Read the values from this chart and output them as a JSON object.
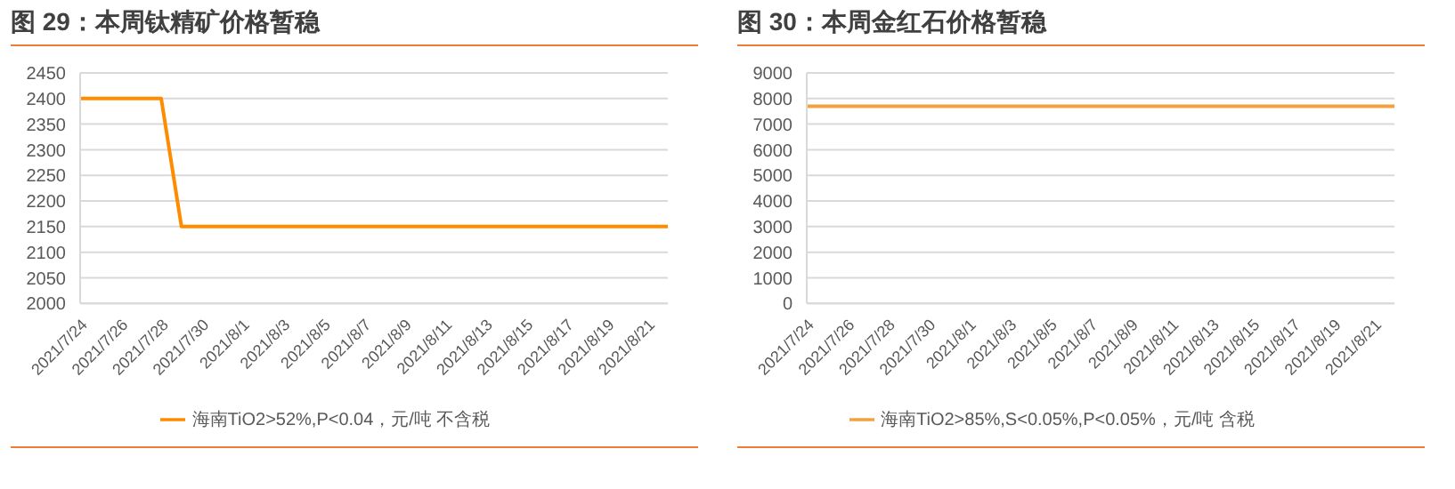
{
  "chart_data": [
    {
      "type": "line",
      "title": "图 29：本周钛精矿价格暂稳",
      "categories": [
        "2021/7/24",
        null,
        "2021/7/26",
        null,
        "2021/7/28",
        null,
        "2021/7/30",
        null,
        "2021/8/1",
        null,
        "2021/8/3",
        null,
        "2021/8/5",
        null,
        "2021/8/7",
        null,
        "2021/8/9",
        null,
        "2021/8/11",
        null,
        "2021/8/13",
        null,
        "2021/8/15",
        null,
        "2021/8/17",
        null,
        "2021/8/19",
        null,
        "2021/8/21",
        null
      ],
      "series": [
        {
          "name": "海南TiO2>52%,P<0.04，元/吨 不含税",
          "color": "#ff8c00",
          "values": [
            2400,
            2400,
            2400,
            2400,
            2400,
            2150,
            2150,
            2150,
            2150,
            2150,
            2150,
            2150,
            2150,
            2150,
            2150,
            2150,
            2150,
            2150,
            2150,
            2150,
            2150,
            2150,
            2150,
            2150,
            2150,
            2150,
            2150,
            2150,
            2150,
            2150
          ]
        }
      ],
      "ylim": [
        2000,
        2450
      ],
      "yticks": [
        2000,
        2050,
        2100,
        2150,
        2200,
        2250,
        2300,
        2350,
        2400,
        2450
      ],
      "grid": "y",
      "legend": "bottom",
      "marker": "none"
    },
    {
      "type": "line",
      "title": "图 30：本周金红石价格暂稳",
      "categories": [
        "2021/7/24",
        null,
        "2021/7/26",
        null,
        "2021/7/28",
        null,
        "2021/7/30",
        null,
        "2021/8/1",
        null,
        "2021/8/3",
        null,
        "2021/8/5",
        null,
        "2021/8/7",
        null,
        "2021/8/9",
        null,
        "2021/8/11",
        null,
        "2021/8/13",
        null,
        "2021/8/15",
        null,
        "2021/8/17",
        null,
        "2021/8/19",
        null,
        "2021/8/21",
        null
      ],
      "series": [
        {
          "name": "海南TiO2>85%,S<0.05%,P<0.05%，元/吨 含税",
          "color": "#f5a040",
          "values": [
            7700,
            7700,
            7700,
            7700,
            7700,
            7700,
            7700,
            7700,
            7700,
            7700,
            7700,
            7700,
            7700,
            7700,
            7700,
            7700,
            7700,
            7700,
            7700,
            7700,
            7700,
            7700,
            7700,
            7700,
            7700,
            7700,
            7700,
            7700,
            7700,
            7700
          ]
        }
      ],
      "ylim": [
        0,
        9000
      ],
      "yticks": [
        0,
        1000,
        2000,
        3000,
        4000,
        5000,
        6000,
        7000,
        8000,
        9000
      ],
      "grid": "y",
      "legend": "bottom",
      "marker": "none"
    }
  ]
}
